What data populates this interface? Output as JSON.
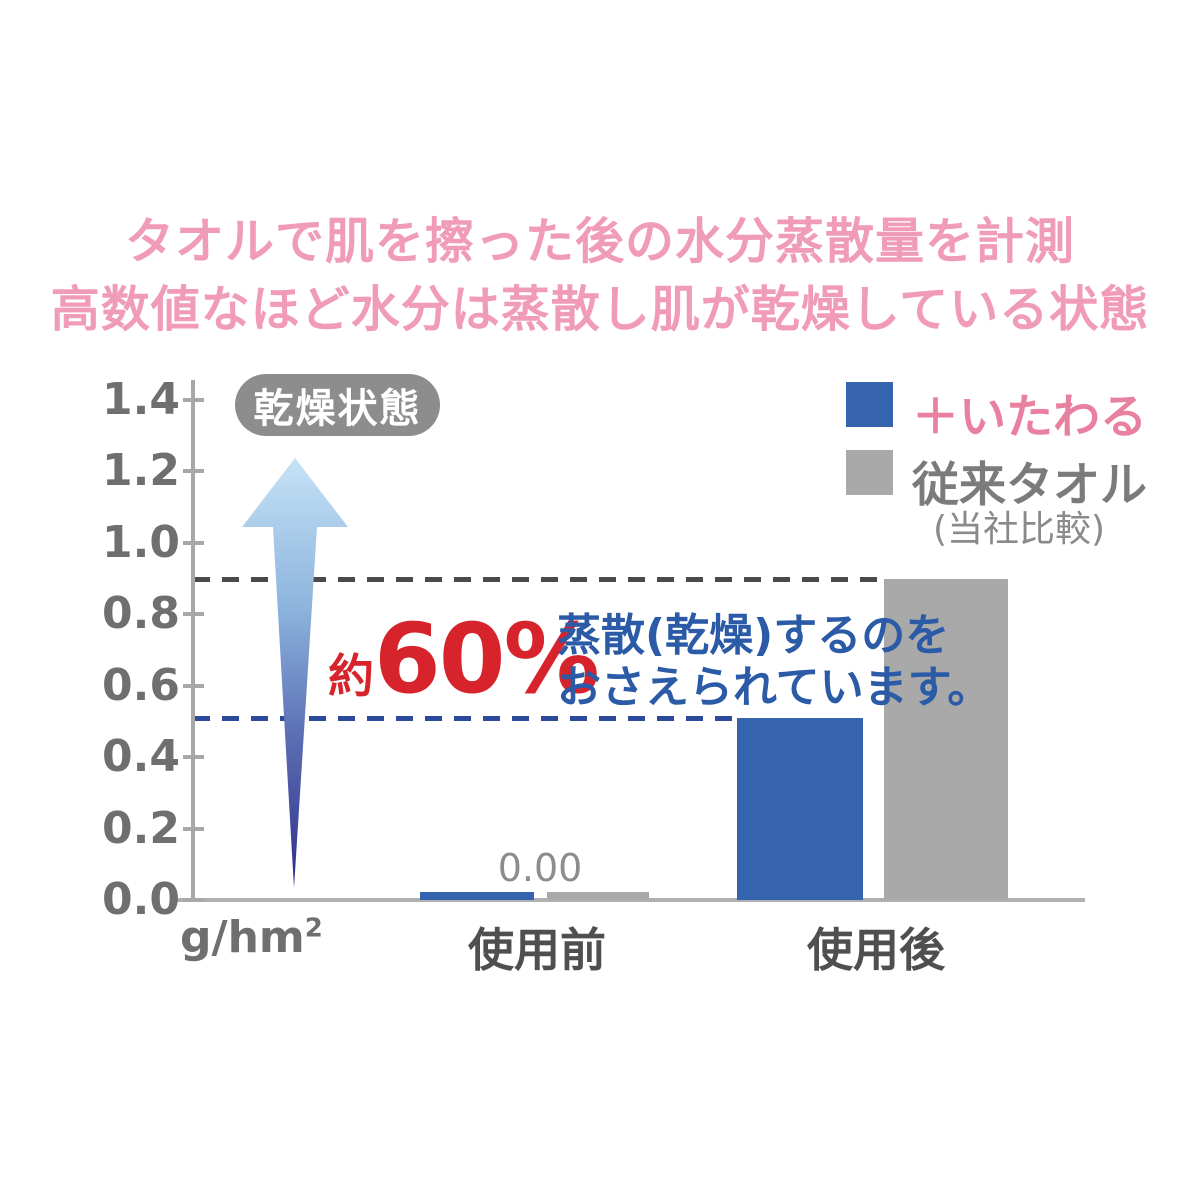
{
  "title": {
    "line1": "タオルで肌を擦った後の水分蒸散量を計測",
    "line2": "高数値なほど水分は蒸散し肌が乾燥している状態",
    "color": "#f09cb8"
  },
  "legend": {
    "items": [
      {
        "label": "＋いたわる",
        "swatch_color": "#3563ae",
        "label_color": "#e8809f"
      },
      {
        "label": "従来タオル",
        "swatch_color": "#a9a9a9",
        "label_color": "#7b7b7b"
      }
    ],
    "note": "(当社比較)"
  },
  "annotations": {
    "dry_state_badge": "乾燥状態",
    "approx_prefix": "約",
    "percent": "60%",
    "percent_color": "#d7232b",
    "note_line1": "蒸散(乾燥)するのを",
    "note_line2": "おさえられています。",
    "note_color": "#2b5aa7",
    "zero_label": "0.00"
  },
  "axis": {
    "unit_base": "g/hm",
    "unit_sup": "2",
    "y_tick_labels": [
      "1.4",
      "1.2",
      "1.0",
      "0.8",
      "0.6",
      "0.4",
      "0.2",
      "0.0"
    ]
  },
  "chart_data": {
    "type": "bar",
    "categories": [
      "使用前",
      "使用後"
    ],
    "series": [
      {
        "name": "＋いたわる",
        "color": "#3563ae",
        "values": [
          0.0,
          0.51
        ]
      },
      {
        "name": "従来タオル",
        "color": "#a9a9a9",
        "values": [
          0.0,
          0.9
        ]
      }
    ],
    "value_labels": {
      "使用前": "0.00"
    },
    "unit": "g/hm²",
    "ylim": [
      0,
      1.4
    ],
    "ytick_step": 0.2,
    "grid": false,
    "legend_position": "top-right",
    "dashed_guides": [
      {
        "value": 0.9,
        "color": "#4a4a4a",
        "series": "従来タオル"
      },
      {
        "value": 0.51,
        "color": "#2b4a9b",
        "series": "＋いたわる"
      }
    ]
  }
}
